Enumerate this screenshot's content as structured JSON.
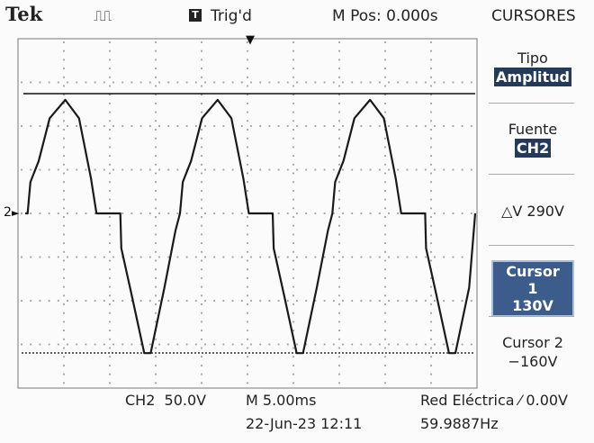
{
  "header": {
    "brand": "Tek",
    "acquisition_icon": "⎍⎍",
    "trigger_badge": "T",
    "trigger_status": "Trig'd",
    "m_pos": "M Pos: 0.000s"
  },
  "menu": {
    "title": "CURSORES",
    "tipo_label": "Tipo",
    "tipo_value": "Amplitud",
    "fuente_label": "Fuente",
    "fuente_value": "CH2",
    "delta_label": "△V 290V",
    "cursor1_label": "Cursor 1",
    "cursor1_value": "130V",
    "cursor2_label": "Cursor 2",
    "cursor2_value": "−160V"
  },
  "footer": {
    "channel_scale": "CH2  50.0V",
    "time_scale": "M 5.00ms",
    "trigger_info": "Red Eléctrica ⁄ 0.00V",
    "datetime": "22-Jun-23 12:11",
    "frequency": "59.9887Hz"
  },
  "graticule": {
    "channel_marker": "2",
    "trigger_marker": "▼"
  },
  "colors": {
    "trace": "#1a1a1a",
    "grid_dots": "#9a9a9a",
    "highlight": "#243a5a"
  },
  "chart_data": {
    "type": "line",
    "channel": "CH2",
    "x_unit": "ms",
    "y_unit": "V",
    "volts_per_div": 50,
    "time_per_div_ms": 5,
    "divisions_x": 10,
    "divisions_y": 8,
    "cursor1_v": 130,
    "cursor2_v": -160,
    "frequency_hz": 59.9887,
    "waveform": "phase-controlled sine: rises from 0 to +130V peak, falls to 0, holds at 0, steps down to negative half-cycle with -160V trough",
    "x": [
      0,
      0.3,
      1.2,
      2.4,
      4.1,
      5.6,
      6.9,
      7.5,
      7.8,
      10.1,
      10.2,
      11.3,
      12.7,
      13.4,
      14.9,
      16.1,
      16.6
    ],
    "y": [
      0,
      36,
      60,
      109,
      130,
      109,
      40,
      0,
      0,
      0,
      -40,
      -92,
      -160,
      -160,
      -85,
      -20,
      0
    ]
  }
}
